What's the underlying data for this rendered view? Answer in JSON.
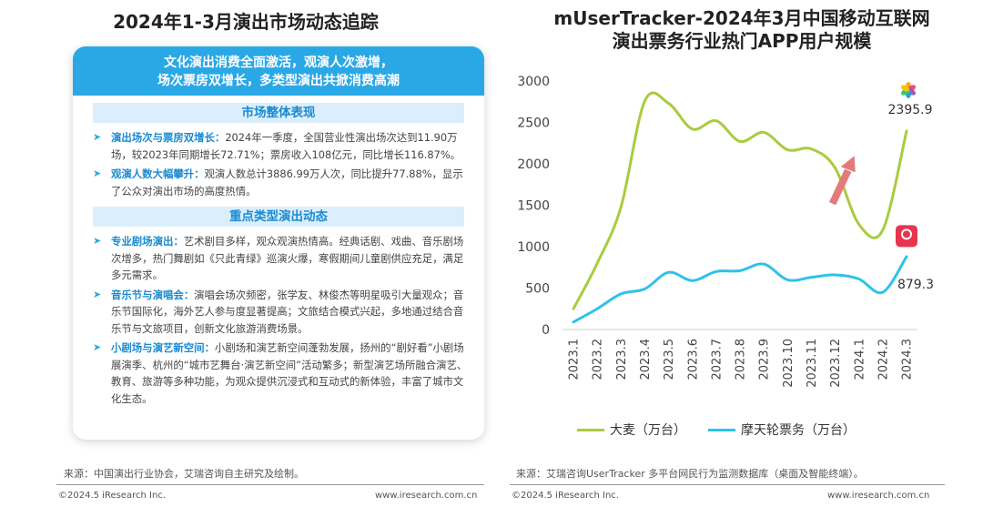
{
  "left": {
    "title": "2024年1-3月演出市场动态追踪",
    "banner_line1": "文化演出消费全面激活，观演人次激增，",
    "banner_line2": "场次票房双增长，多类型演出共掀消费高潮",
    "section1_title": "市场整体表现",
    "item1_head": "演出场次与票房双增长：",
    "item1_body": "2024年一季度，全国营业性演出场次达到11.90万场，较2023年同期增长72.71%；票房收入108亿元，同比增长116.87%。",
    "item2_head": "观演人数大幅攀升：",
    "item2_body": "观演人数总计3886.99万人次，同比提升77.88%，显示了公众对演出市场的高度热情。",
    "section2_title": "重点类型演出动态",
    "item3_head": "专业剧场演出：",
    "item3_body": "艺术剧目多样，观众观演热情高。经典话剧、戏曲、音乐剧场次增多，热门舞剧如《只此青绿》巡演火爆，寒假期间儿童剧供应充足，满足多元需求。",
    "item4_head": "音乐节与演唱会：",
    "item4_body": "演唱会场次频密，张学友、林俊杰等明星吸引大量观众；音乐节国际化，海外艺人参与度显著提高；文旅结合模式兴起，多地通过结合音乐节与文旅项目，创新文化旅游消费场景。",
    "item5_head": "小剧场与演艺新空间：",
    "item5_body": "小剧场和演艺新空间蓬勃发展，扬州的“剧好看”小剧场展演季、杭州的“城市艺舞台·演艺新空间”活动繁多；新型演艺场所融合演艺、教育、旅游等多种功能，为观众提供沉浸式和互动式的新体验，丰富了城市文化生态。",
    "source": "来源：中国演出行业协会，艾瑞咨询自主研究及绘制。",
    "footer_left": "©2024.5 iResearch Inc.",
    "footer_right": "www.iresearch.com.cn"
  },
  "right": {
    "title_line1": "mUserTracker-2024年3月中国移动互联网",
    "title_line2": "演出票务行业热门APP用户规模",
    "source": "来源：艾瑞咨询UserTracker 多平台网民行为监测数据库（桌面及智能终端）。",
    "footer_left": "©2024.5 iResearch Inc.",
    "footer_right": "www.iresearch.com.cn",
    "legend1": "大麦（万台）",
    "legend2": "摩天轮票务（万台）",
    "end_label1": "2395.9",
    "end_label2": "879.3",
    "colors": {
      "damai": "#a9cc3e",
      "motianlun": "#2ec2ea",
      "arrow": "#e57a7a",
      "axis": "#cccccc"
    },
    "icons": [
      "damai-logo-icon",
      "motianlun-logo-icon"
    ]
  },
  "chart_data": {
    "type": "line",
    "categories": [
      "2023.1",
      "2023.2",
      "2023.3",
      "2023.4",
      "2023.5",
      "2023.6",
      "2023.7",
      "2023.8",
      "2023.9",
      "2023.10",
      "2023.11",
      "2023.12",
      "2024.1",
      "2024.2",
      "2024.3"
    ],
    "series": [
      {
        "name": "大麦（万台）",
        "values": [
          250,
          800,
          1480,
          2760,
          2730,
          2420,
          2520,
          2270,
          2380,
          2170,
          2180,
          1950,
          1270,
          1200,
          2395.9
        ]
      },
      {
        "name": "摩天轮票务（万台）",
        "values": [
          90,
          250,
          430,
          490,
          690,
          590,
          700,
          710,
          790,
          600,
          630,
          660,
          610,
          450,
          879.3
        ]
      }
    ],
    "yticks": [
      0,
      500,
      1000,
      1500,
      2000,
      2500,
      3000
    ],
    "ylim": [
      0,
      3000
    ],
    "legend_position": "bottom",
    "grid": false
  }
}
